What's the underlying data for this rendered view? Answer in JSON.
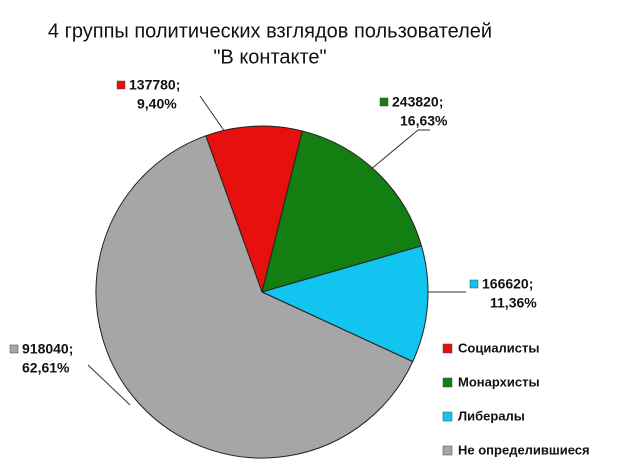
{
  "chart_data": {
    "type": "pie",
    "title": [
      "4 группы политических взглядов пользователей",
      "\"В контакте\""
    ],
    "categories": [
      "Социалисты",
      "Монархисты",
      "Либералы",
      "Не определившиеся"
    ],
    "values": [
      137780,
      243820,
      166620,
      918040
    ],
    "value_labels": [
      "137780;",
      "243820;",
      "166620;",
      "918040;"
    ],
    "percents": [
      9.4,
      16.63,
      11.36,
      62.61
    ],
    "percent_labels": [
      "9,40%",
      "16,63%",
      "11,36%",
      "62,61%"
    ],
    "colors": [
      "#e8100f",
      "#137f13",
      "#12c4f0",
      "#a6a6a6"
    ],
    "legend": "right-bottom"
  }
}
